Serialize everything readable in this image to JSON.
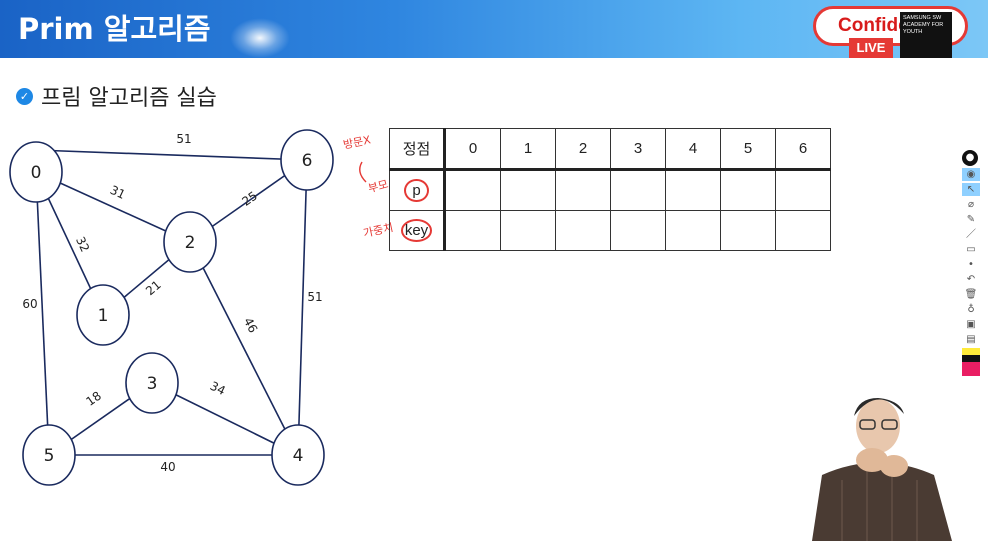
{
  "header": {
    "title": "Prim 알고리즘",
    "badge_text": "Confide",
    "live_label": "LIVE",
    "samsung_label": "SAMSUNG SW ACADEMY FOR YOUTH"
  },
  "section": {
    "title": "프림 알고리즘 실습"
  },
  "graph": {
    "nodes": [
      "0",
      "1",
      "2",
      "3",
      "4",
      "5",
      "6"
    ],
    "edge_weights": [
      "51",
      "31",
      "25",
      "32",
      "21",
      "60",
      "46",
      "51",
      "18",
      "34",
      "40"
    ]
  },
  "table": {
    "header_label": "정점",
    "columns": [
      "0",
      "1",
      "2",
      "3",
      "4",
      "5",
      "6"
    ],
    "row_p_label": "p",
    "row_key_label": "key"
  },
  "annotations": {
    "a1": "방문X",
    "a2": "부모",
    "a3": "가중치"
  },
  "colors": {
    "accent_blue": "#1e88e5",
    "annotation_red": "#e53935",
    "edge_color": "#1a2a5e"
  },
  "icons": [
    "bulb-icon",
    "eye-icon",
    "cursor-icon",
    "eraser-icon",
    "pen-icon",
    "marker-icon",
    "dot-icon",
    "undo-icon",
    "trash-icon",
    "stamp-icon",
    "camera-icon",
    "clipboard-icon",
    "palette-icon"
  ]
}
